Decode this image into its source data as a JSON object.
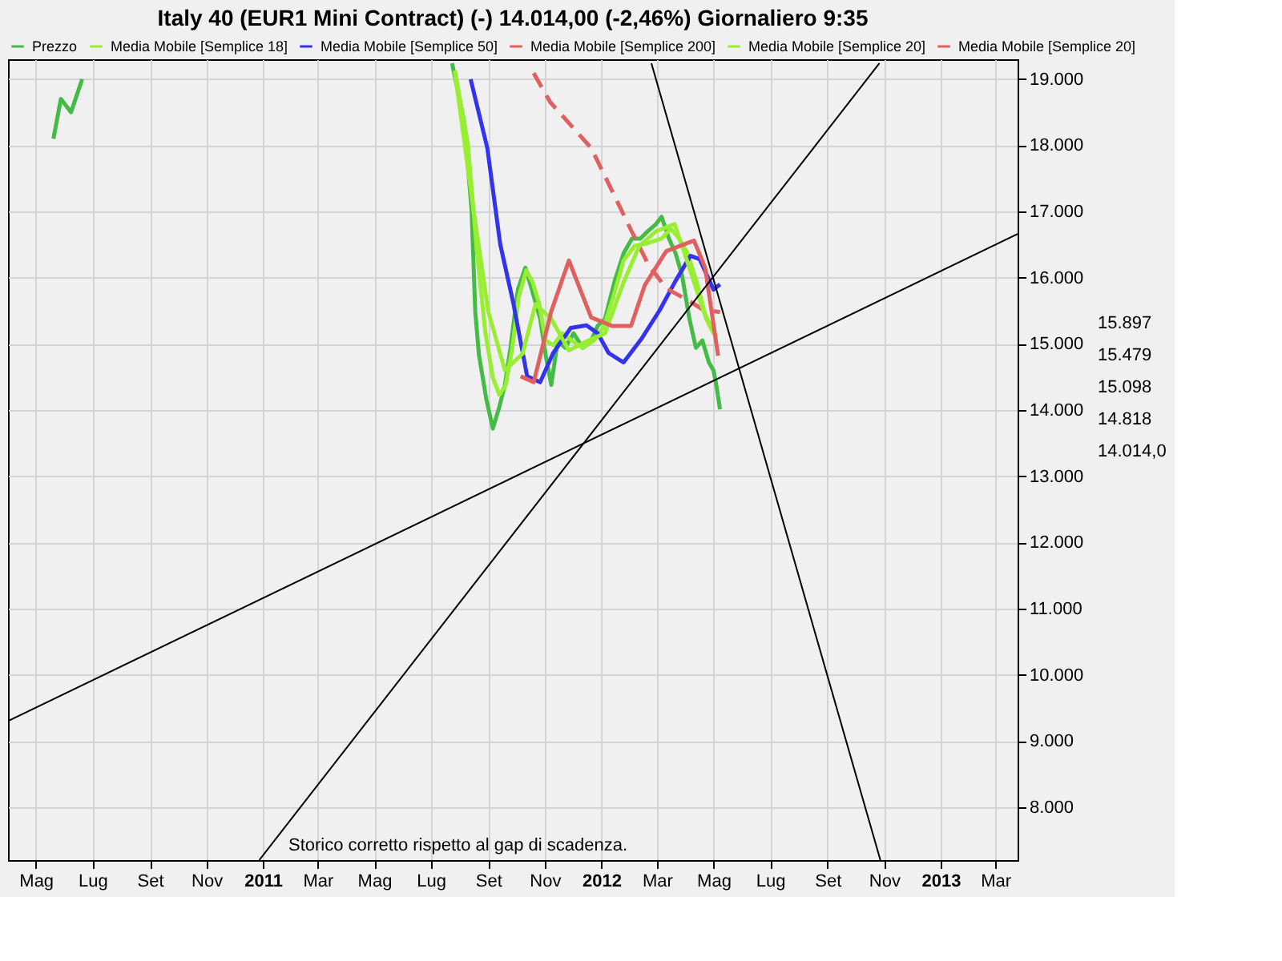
{
  "chart_data": {
    "type": "line",
    "title": "Italy 40 (EUR1 Mini Contract) (-)    14.014,00 (-2,46%)    Giornaliero  9:35",
    "xlim": [
      "2010-04-01",
      "2013-03-25"
    ],
    "xticks": [
      {
        "value": "2010-05-01",
        "label": "Mag"
      },
      {
        "value": "2010-07-01",
        "label": "Lug"
      },
      {
        "value": "2010-09-01",
        "label": "Set"
      },
      {
        "value": "2010-11-01",
        "label": "Nov"
      },
      {
        "value": "2011-01-01",
        "label": "2011"
      },
      {
        "value": "2011-03-01",
        "label": "Mar"
      },
      {
        "value": "2011-05-01",
        "label": "Mag"
      },
      {
        "value": "2011-07-01",
        "label": "Lug"
      },
      {
        "value": "2011-09-01",
        "label": "Set"
      },
      {
        "value": "2011-11-01",
        "label": "Nov"
      },
      {
        "value": "2012-01-01",
        "label": "2012"
      },
      {
        "value": "2012-03-01",
        "label": "Mar"
      },
      {
        "value": "2012-05-01",
        "label": "Mag"
      },
      {
        "value": "2012-07-01",
        "label": "Lug"
      },
      {
        "value": "2012-09-01",
        "label": "Set"
      },
      {
        "value": "2012-11-01",
        "label": "Nov"
      },
      {
        "value": "2013-01-01",
        "label": "2013"
      },
      {
        "value": "2013-03-01",
        "label": "Mar"
      }
    ],
    "ylim": [
      7200,
      19300
    ],
    "yticks": [
      {
        "value": 8000,
        "label": "8.000"
      },
      {
        "value": 9000,
        "label": "9.000"
      },
      {
        "value": 10000,
        "label": "10.000"
      },
      {
        "value": 11000,
        "label": "11.000"
      },
      {
        "value": 12000,
        "label": "12.000"
      },
      {
        "value": 13000,
        "label": "13.000"
      },
      {
        "value": 14000,
        "label": "14.000"
      },
      {
        "value": 15000,
        "label": "15.000"
      },
      {
        "value": 16000,
        "label": "16.000"
      },
      {
        "value": 17000,
        "label": "17.000"
      },
      {
        "value": 18000,
        "label": "18.000"
      },
      {
        "value": 19000,
        "label": "19.000"
      }
    ],
    "grid": true,
    "legend": "top",
    "marker": "none",
    "series": [
      {
        "name": "Prezzo",
        "color": "#44bb44",
        "x": [
          "2010-05-20",
          "2010-05-28",
          "2010-06-08",
          "2010-06-20",
          "2010-07-01",
          "2011-07-24",
          "2011-08-06",
          "2011-08-14",
          "2011-08-18",
          "2011-08-22",
          "2011-08-30",
          "2011-09-06",
          "2011-09-13",
          "2011-09-19",
          "2011-09-25",
          "2011-10-03",
          "2011-10-11",
          "2011-10-18",
          "2011-10-27",
          "2011-11-02",
          "2011-11-08",
          "2011-11-15",
          "2011-11-23",
          "2011-12-02",
          "2011-12-12",
          "2011-12-21",
          "2011-12-28",
          "2012-01-05",
          "2012-01-15",
          "2012-01-25",
          "2012-02-03",
          "2012-02-12",
          "2012-02-20",
          "2012-02-29",
          "2012-03-06",
          "2012-03-14",
          "2012-03-21",
          "2012-03-28",
          "2012-04-05",
          "2012-04-12",
          "2012-04-19",
          "2012-04-26",
          "2012-05-01",
          "2012-05-04",
          "2012-05-08"
        ],
        "values": [
          18100,
          18700,
          18500,
          19000,
          null,
          19240,
          18360,
          17030,
          15490,
          14830,
          14160,
          13720,
          14050,
          14380,
          14940,
          15820,
          16150,
          15820,
          15380,
          14830,
          14380,
          15050,
          14940,
          15160,
          14940,
          15050,
          15270,
          15380,
          15930,
          16370,
          16590,
          16590,
          16700,
          16810,
          16920,
          16590,
          16370,
          16040,
          15380,
          14940,
          15050,
          14720,
          14600,
          14380,
          14010
        ]
      },
      {
        "name": "Media Mobile [Semplice 18]",
        "color": "#99ee33",
        "x": [
          "2011-07-27",
          "2011-08-10",
          "2011-08-20",
          "2011-08-29",
          "2011-09-06",
          "2011-09-13",
          "2011-09-20",
          "2011-09-27",
          "2011-10-04",
          "2011-10-12",
          "2011-10-19",
          "2011-10-26",
          "2011-11-02",
          "2011-11-10",
          "2011-11-20",
          "2011-11-30",
          "2011-12-12",
          "2011-12-24",
          "2012-01-04",
          "2012-01-14",
          "2012-01-25",
          "2012-02-06",
          "2012-02-20",
          "2012-03-06",
          "2012-03-16",
          "2012-03-25",
          "2012-04-03",
          "2012-04-13",
          "2012-04-23",
          "2012-05-01",
          "2012-05-04"
        ],
        "values": [
          19130,
          18030,
          16370,
          15160,
          14490,
          14230,
          14380,
          14940,
          15710,
          16110,
          15930,
          15600,
          15050,
          14980,
          15160,
          15050,
          14940,
          15050,
          15270,
          15710,
          16260,
          16480,
          16520,
          16590,
          16740,
          16590,
          16370,
          15930,
          15380,
          15160,
          15100
        ]
      },
      {
        "name": "Media Mobile [Semplice 50]",
        "color": "#3333ee",
        "x": [
          "2011-08-13",
          "2011-08-31",
          "2011-09-14",
          "2011-09-28",
          "2011-10-13",
          "2011-10-27",
          "2011-11-10",
          "2011-11-29",
          "2011-12-16",
          "2011-12-28",
          "2012-01-09",
          "2012-01-25",
          "2012-02-13",
          "2012-03-04",
          "2012-03-21",
          "2012-04-06",
          "2012-04-16",
          "2012-05-01",
          "2012-05-08"
        ],
        "values": [
          19000,
          17960,
          16500,
          15620,
          14510,
          14420,
          14860,
          15240,
          15280,
          15160,
          14860,
          14720,
          15070,
          15510,
          15950,
          16330,
          16280,
          15820,
          15900
        ]
      },
      {
        "name": "Media Mobile [Semplice 200]",
        "color": "#e06060",
        "line_style": "dashed",
        "x": [
          "2011-10-20",
          "2011-11-07",
          "2011-12-21",
          "2012-01-13",
          "2012-02-02",
          "2012-02-21",
          "2012-03-11",
          "2012-04-08",
          "2012-04-19",
          "2012-05-08"
        ],
        "values": [
          19090,
          18650,
          17960,
          17300,
          16720,
          16190,
          15840,
          15620,
          15520,
          15480
        ]
      },
      {
        "name": "Media Mobile [Semplice 20]",
        "color": "#99ee33",
        "x": [
          "2011-07-27",
          "2011-08-15",
          "2011-09-01",
          "2011-09-19",
          "2011-10-08",
          "2011-10-22",
          "2011-11-08",
          "2011-11-27",
          "2011-12-18",
          "2012-01-05",
          "2012-01-25",
          "2012-02-11",
          "2012-02-29",
          "2012-03-20",
          "2012-04-05",
          "2012-04-20",
          "2012-05-04"
        ],
        "values": [
          19110,
          17140,
          15490,
          14600,
          14850,
          15600,
          15380,
          14900,
          15050,
          15160,
          15930,
          16480,
          16700,
          16810,
          16150,
          15500,
          15100
        ]
      },
      {
        "name": "Media Mobile [Semplice 20]",
        "color": "#e06060",
        "x": [
          "2011-10-06",
          "2011-10-20",
          "2011-11-08",
          "2011-11-27",
          "2011-12-21",
          "2012-01-13",
          "2012-02-02",
          "2012-02-17",
          "2012-03-11",
          "2012-04-10",
          "2012-04-22",
          "2012-05-06"
        ],
        "values": [
          14510,
          14420,
          15490,
          16260,
          15400,
          15270,
          15270,
          15890,
          16400,
          16560,
          16150,
          14820
        ]
      },
      {
        "color": "#000000",
        "x": [
          "2010-04-01",
          "2013-03-25"
        ],
        "values": [
          9300,
          16660
        ]
      },
      {
        "color": "#000000",
        "x": [
          "2010-12-28",
          "2012-10-27"
        ],
        "values": [
          7200,
          19240
        ]
      },
      {
        "color": "#000000",
        "x": [
          "2012-02-24",
          "2012-10-28"
        ],
        "values": [
          19240,
          7200
        ]
      }
    ],
    "annotations": [
      "Storico corretto rispetto al gap di scadenza.",
      "15.897",
      "15.479",
      "15.098",
      "14.818",
      "14.014,0"
    ]
  }
}
